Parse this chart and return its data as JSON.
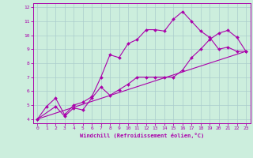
{
  "xlabel": "Windchill (Refroidissement éolien,°C)",
  "background_color": "#cceedd",
  "grid_color": "#aacccc",
  "line_color": "#aa00aa",
  "xlim": [
    -0.5,
    23.5
  ],
  "ylim": [
    3.7,
    12.3
  ],
  "xticks": [
    0,
    1,
    2,
    3,
    4,
    5,
    6,
    7,
    8,
    9,
    10,
    11,
    12,
    13,
    14,
    15,
    16,
    17,
    18,
    19,
    20,
    21,
    22,
    23
  ],
  "yticks": [
    4,
    5,
    6,
    7,
    8,
    9,
    10,
    11,
    12
  ],
  "line1_x": [
    0,
    1,
    2,
    3,
    4,
    5,
    6,
    7,
    8,
    9,
    10,
    11,
    12,
    13,
    14,
    15,
    16,
    17,
    18,
    19,
    20,
    21,
    22,
    23
  ],
  "line1_y": [
    4.0,
    4.9,
    5.5,
    4.3,
    5.0,
    5.2,
    5.6,
    7.0,
    8.6,
    8.4,
    9.4,
    9.7,
    10.4,
    10.4,
    10.3,
    11.15,
    11.7,
    11.0,
    10.3,
    9.85,
    9.0,
    9.15,
    8.85,
    8.85
  ],
  "line2_x": [
    0,
    2,
    3,
    4,
    5,
    6,
    7,
    8,
    9,
    10,
    11,
    12,
    13,
    14,
    15,
    16,
    17,
    18,
    19,
    20,
    21,
    22,
    23
  ],
  "line2_y": [
    4.0,
    4.9,
    4.2,
    4.8,
    4.65,
    5.5,
    6.3,
    5.7,
    6.1,
    6.5,
    7.0,
    7.0,
    7.0,
    7.0,
    7.0,
    7.5,
    8.4,
    9.0,
    9.7,
    10.15,
    10.35,
    9.85,
    8.85
  ],
  "line3_x": [
    0,
    23
  ],
  "line3_y": [
    4.0,
    8.85
  ]
}
